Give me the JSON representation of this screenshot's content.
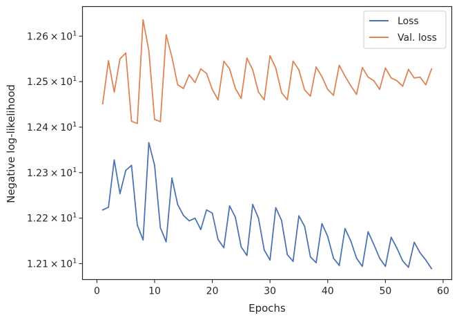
{
  "chart_data": {
    "type": "line",
    "xlabel": "Epochs",
    "ylabel": "Negative log-likelihood",
    "xlim": [
      -2.5,
      61.5
    ],
    "ylim": [
      12.065,
      12.665
    ],
    "x_ticks": [
      0,
      10,
      20,
      30,
      40,
      50,
      60
    ],
    "x_tick_labels": [
      "0",
      "10",
      "20",
      "30",
      "40",
      "50",
      "60"
    ],
    "y_ticks": [
      12.1,
      12.2,
      12.3,
      12.4,
      12.5,
      12.6
    ],
    "y_tick_mantissas": [
      "1.21",
      "1.22",
      "1.23",
      "1.24",
      "1.25",
      "1.26"
    ],
    "y_tick_base": "10",
    "y_tick_exponent": "1",
    "grid": false,
    "legend_position": "top-right",
    "x": [
      1,
      2,
      3,
      4,
      5,
      6,
      7,
      8,
      9,
      10,
      11,
      12,
      13,
      14,
      15,
      16,
      17,
      18,
      19,
      20,
      21,
      22,
      23,
      24,
      25,
      26,
      27,
      28,
      29,
      30,
      31,
      32,
      33,
      34,
      35,
      36,
      37,
      38,
      39,
      40,
      41,
      42,
      43,
      44,
      45,
      46,
      47,
      48,
      49,
      50,
      51,
      52,
      53,
      54,
      55,
      56,
      57,
      58
    ],
    "series": [
      {
        "name": "Loss",
        "color": "#4c72b0",
        "values": [
          12.218,
          12.224,
          12.328,
          12.254,
          12.305,
          12.316,
          12.185,
          12.152,
          12.366,
          12.316,
          12.179,
          12.148,
          12.288,
          12.23,
          12.206,
          12.194,
          12.2,
          12.175,
          12.218,
          12.211,
          12.153,
          12.135,
          12.227,
          12.202,
          12.137,
          12.118,
          12.23,
          12.2,
          12.13,
          12.108,
          12.223,
          12.195,
          12.12,
          12.105,
          12.205,
          12.182,
          12.115,
          12.102,
          12.188,
          12.16,
          12.112,
          12.096,
          12.177,
          12.15,
          12.112,
          12.094,
          12.17,
          12.142,
          12.112,
          12.094,
          12.158,
          12.134,
          12.106,
          12.092,
          12.147,
          12.124,
          12.108,
          12.089
        ]
      },
      {
        "name": "Val. loss",
        "color": "#dd8452",
        "values": [
          12.451,
          12.546,
          12.477,
          12.55,
          12.563,
          12.413,
          12.408,
          12.636,
          12.568,
          12.417,
          12.412,
          12.603,
          12.554,
          12.493,
          12.485,
          12.515,
          12.498,
          12.528,
          12.518,
          12.483,
          12.46,
          12.545,
          12.528,
          12.485,
          12.463,
          12.552,
          12.526,
          12.477,
          12.46,
          12.557,
          12.53,
          12.476,
          12.46,
          12.545,
          12.526,
          12.482,
          12.468,
          12.532,
          12.511,
          12.483,
          12.47,
          12.536,
          12.512,
          12.491,
          12.472,
          12.531,
          12.51,
          12.502,
          12.483,
          12.53,
          12.508,
          12.502,
          12.49,
          12.527,
          12.508,
          12.51,
          12.493,
          12.528
        ]
      }
    ]
  }
}
